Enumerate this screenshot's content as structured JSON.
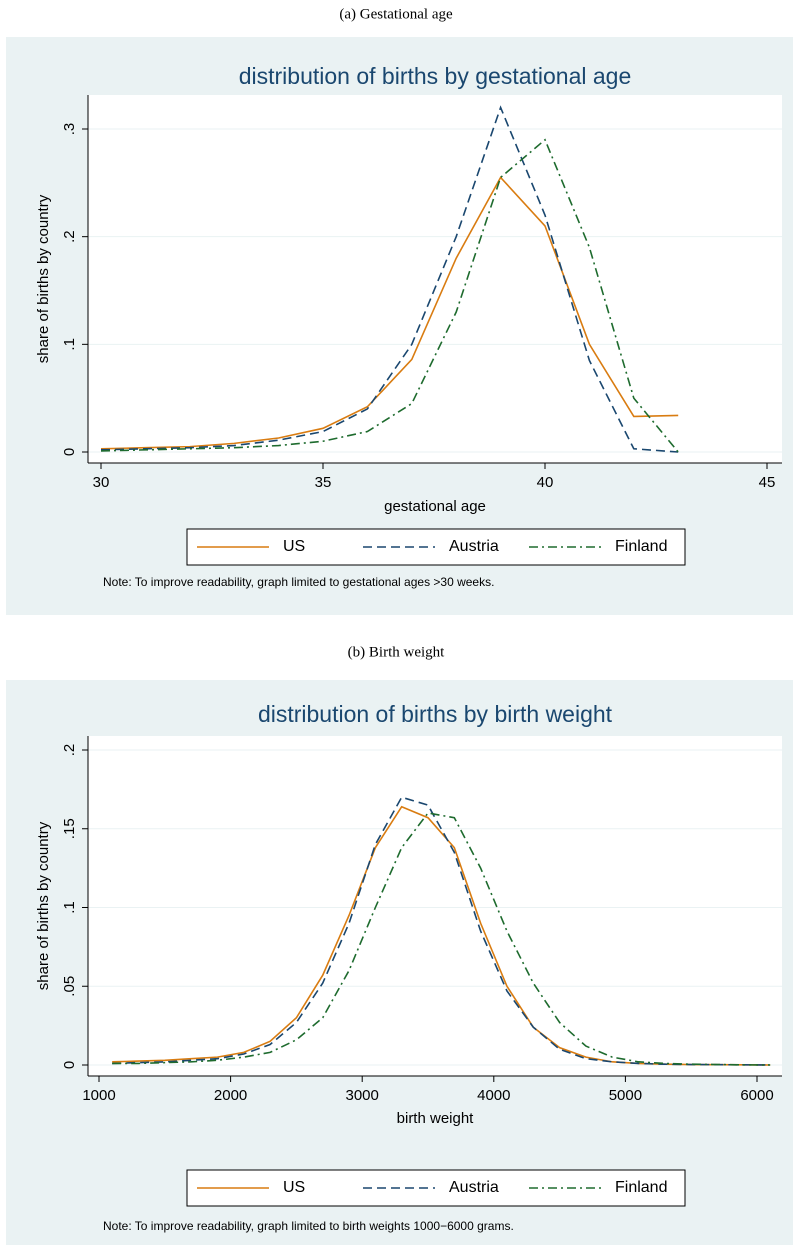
{
  "chart_data": [
    {
      "type": "line",
      "caption": "(a) Gestational age",
      "title": "distribution of births by gestational age",
      "x_label": "gestational age",
      "y_label": "share of births by country",
      "note": "Note: To improve readability, graph limited to gestational ages >30 weeks.",
      "x": [
        30,
        31,
        32,
        33,
        34,
        35,
        36,
        37,
        38,
        39,
        40,
        41,
        42,
        43
      ],
      "series": [
        {
          "name": "US",
          "color": "#d97c11",
          "style": "solid",
          "values": [
            0.003,
            0.004,
            0.005,
            0.008,
            0.013,
            0.022,
            0.042,
            0.086,
            0.18,
            0.255,
            0.21,
            0.1,
            0.033,
            0.034
          ]
        },
        {
          "name": "Austria",
          "color": "#1a476f",
          "style": "dash",
          "values": [
            0.002,
            0.003,
            0.004,
            0.006,
            0.011,
            0.019,
            0.04,
            0.1,
            0.2,
            0.32,
            0.22,
            0.085,
            0.003,
            0
          ]
        },
        {
          "name": "Finland",
          "color": "#1e6b2e",
          "style": "dashdot",
          "values": [
            0.001,
            0.002,
            0.003,
            0.004,
            0.006,
            0.01,
            0.019,
            0.045,
            0.13,
            0.255,
            0.29,
            0.19,
            0.05,
            0
          ]
        }
      ],
      "xlim": [
        30,
        45
      ],
      "xticks": [
        30,
        35,
        40,
        45
      ],
      "ylim": [
        0,
        0.33
      ],
      "yticks": [
        0,
        {
          "value": 0.1,
          "label": ".1"
        },
        {
          "value": 0.2,
          "label": ".2"
        },
        {
          "value": 0.3,
          "label": ".3"
        }
      ],
      "grid": true
    },
    {
      "type": "line",
      "caption": "(b) Birth weight",
      "title": "distribution of births by birth weight",
      "x_label": "birth weight",
      "y_label": "share of births by country",
      "note": "Note: To improve readability, graph limited to birth weights 1000−6000 grams.",
      "x": [
        1100,
        1300,
        1500,
        1700,
        1900,
        2100,
        2300,
        2500,
        2700,
        2900,
        3100,
        3300,
        3500,
        3700,
        3900,
        4100,
        4300,
        4500,
        4700,
        4900,
        5100,
        5300,
        5500,
        5700,
        5900,
        6100
      ],
      "series": [
        {
          "name": "US",
          "color": "#d97c11",
          "style": "solid",
          "values": [
            0.002,
            0.0025,
            0.003,
            0.004,
            0.005,
            0.008,
            0.015,
            0.03,
            0.057,
            0.095,
            0.138,
            0.164,
            0.157,
            0.138,
            0.09,
            0.05,
            0.024,
            0.011,
            0.005,
            0.002,
            0.001,
            0.0005,
            0.0003,
            0.0002,
            0.0001,
            0
          ]
        },
        {
          "name": "Austria",
          "color": "#1a476f",
          "style": "dash",
          "values": [
            0.001,
            0.0015,
            0.002,
            0.003,
            0.004,
            0.007,
            0.013,
            0.027,
            0.052,
            0.09,
            0.14,
            0.17,
            0.165,
            0.135,
            0.085,
            0.047,
            0.024,
            0.01,
            0.004,
            0.002,
            0.001,
            0.0005,
            0.0003,
            0.0002,
            0.0001,
            0
          ]
        },
        {
          "name": "Finland",
          "color": "#1e6b2e",
          "style": "dashdot",
          "values": [
            0.001,
            0.001,
            0.0015,
            0.002,
            0.003,
            0.005,
            0.008,
            0.016,
            0.03,
            0.06,
            0.1,
            0.138,
            0.16,
            0.157,
            0.125,
            0.085,
            0.052,
            0.027,
            0.012,
            0.005,
            0.002,
            0.001,
            0.0005,
            0.0003,
            0.0001,
            0
          ]
        }
      ],
      "xlim": [
        1000,
        6000
      ],
      "xticks": [
        1000,
        2000,
        3000,
        4000,
        5000,
        6000
      ],
      "ylim": [
        0,
        0.2
      ],
      "yticks": [
        0,
        {
          "value": 0.05,
          "label": ".05"
        },
        {
          "value": 0.1,
          "label": ".1"
        },
        {
          "value": 0.15,
          "label": ".15"
        },
        {
          "value": 0.2,
          "label": ".2"
        }
      ],
      "grid": true
    }
  ]
}
